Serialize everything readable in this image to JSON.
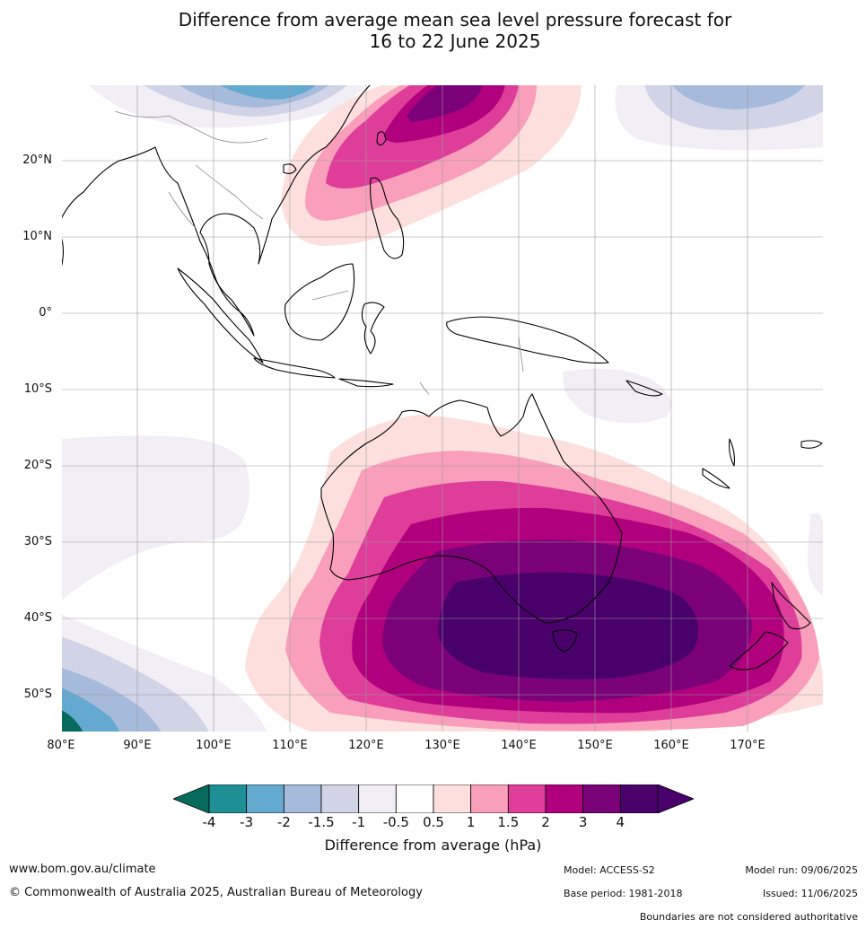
{
  "title_line1": "Difference from average mean sea level pressure forecast for",
  "title_line2": "16 to 22 June 2025",
  "map": {
    "lat_labels": [
      "20°N",
      "10°N",
      "0°",
      "10°S",
      "20°S",
      "30°S",
      "40°S",
      "50°S"
    ],
    "lon_labels": [
      "80°E",
      "90°E",
      "100°E",
      "110°E",
      "120°E",
      "130°E",
      "140°E",
      "150°E",
      "160°E",
      "170°E"
    ]
  },
  "colorbar": {
    "ticks": [
      "-4",
      "-3",
      "-2",
      "-1.5",
      "-1",
      "-0.5",
      "0.5",
      "1",
      "1.5",
      "2",
      "3",
      "4"
    ],
    "colors": [
      "#1f8f96",
      "#64a9cf",
      "#a6bbdc",
      "#d1d3e7",
      "#f1eef5",
      "#ffffff",
      "#fde0dd",
      "#f99fbb",
      "#de3e9a",
      "#b0007d",
      "#7a0177",
      "#49006a"
    ],
    "low_extend_color": "#066b5d",
    "high_extend_color": "#49006a",
    "label": "Difference from average (hPa)"
  },
  "footer": {
    "website": "www.bom.gov.au/climate",
    "copyright": "© Commonwealth of Australia 2025, Australian Bureau of Meteorology",
    "model": "Model: ACCESS-S2",
    "base_period": "Base period: 1981-2018",
    "model_run": "Model run: 09/06/2025",
    "issued": "Issued: 11/06/2025",
    "disclaimer": "Boundaries are not considered authoritative"
  }
}
